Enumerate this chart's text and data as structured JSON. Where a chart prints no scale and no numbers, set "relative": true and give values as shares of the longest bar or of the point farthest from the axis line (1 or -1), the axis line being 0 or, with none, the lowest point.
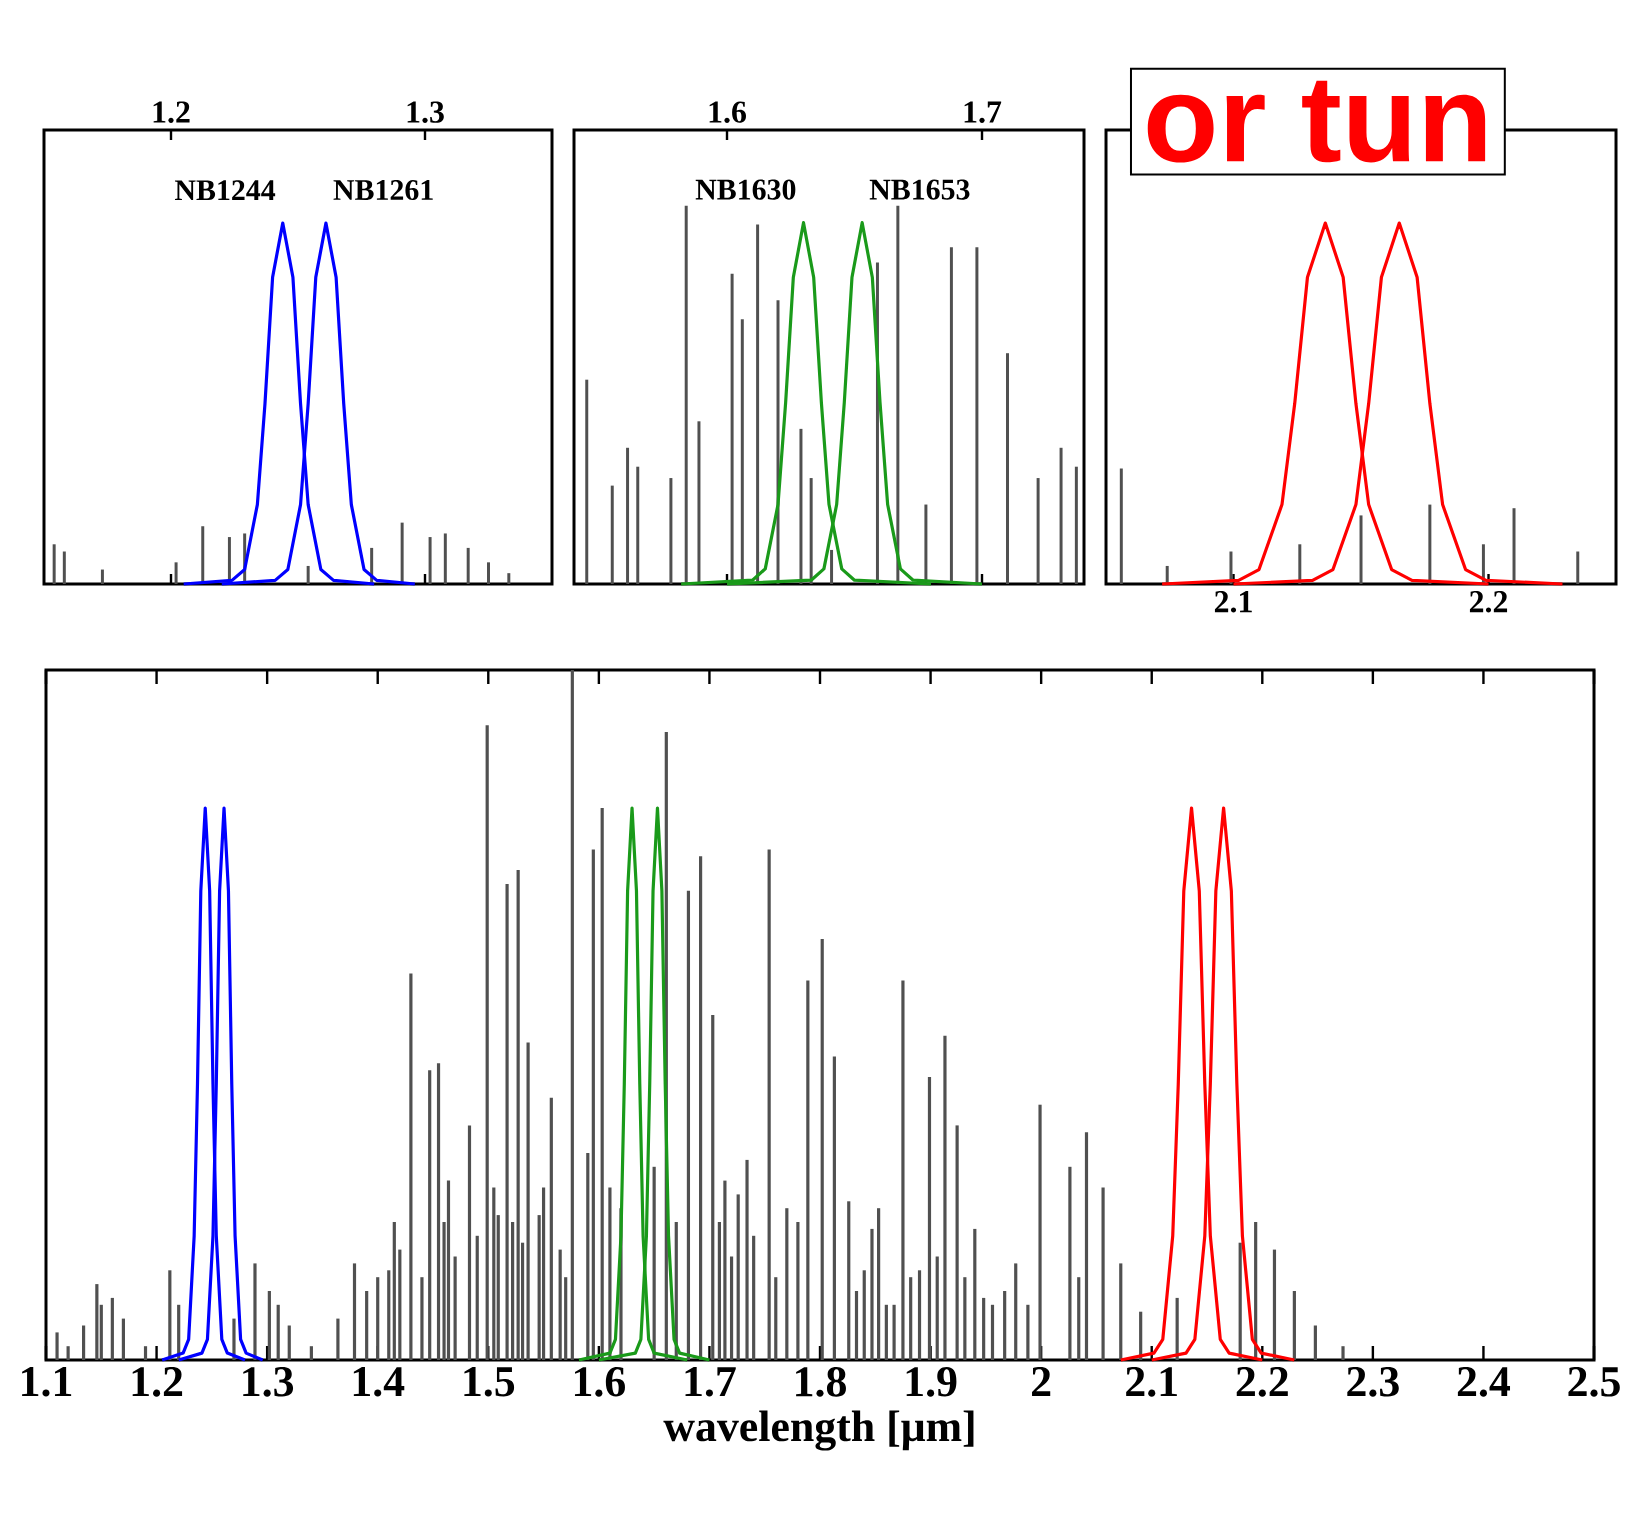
{
  "chart_data": [
    {
      "type": "bar",
      "relative": true,
      "xlim": [
        1.15,
        1.35
      ],
      "xticks": [
        1.2,
        1.3
      ],
      "tick_labels": "x",
      "series": [
        {
          "color": "#505050",
          "x": [
            1.154,
            1.158,
            1.173,
            1.202,
            1.2125,
            1.223,
            1.229,
            1.254,
            1.279,
            1.291,
            1.302,
            1.308,
            1.317,
            1.325,
            1.333
          ],
          "values": [
            0.11,
            0.09,
            0.04,
            0.06,
            0.16,
            0.13,
            0.14,
            0.05,
            0.1,
            0.17,
            0.13,
            0.14,
            0.1,
            0.06,
            0.03
          ]
        },
        {
          "type": "line",
          "name": "NB1244",
          "color": "#0000ff",
          "x": [
            1.205,
            1.224,
            1.229,
            1.234,
            1.237,
            1.24,
            1.244,
            1.248,
            1.251,
            1.254,
            1.259,
            1.264,
            1.28
          ],
          "values": [
            0,
            0.01,
            0.04,
            0.22,
            0.5,
            0.85,
            1.0,
            0.85,
            0.5,
            0.22,
            0.04,
            0.01,
            0
          ]
        },
        {
          "type": "line",
          "name": "NB1261",
          "color": "#0000ff",
          "x": [
            1.22,
            1.241,
            1.246,
            1.251,
            1.254,
            1.257,
            1.261,
            1.265,
            1.268,
            1.271,
            1.276,
            1.281,
            1.296
          ],
          "values": [
            0,
            0.01,
            0.04,
            0.22,
            0.5,
            0.85,
            1.0,
            0.85,
            0.5,
            0.22,
            0.04,
            0.01,
            0
          ]
        }
      ]
    },
    {
      "type": "bar",
      "relative": true,
      "xlim": [
        1.54,
        1.74
      ],
      "xticks": [
        1.6,
        1.7
      ],
      "tick_labels": "x",
      "series": [
        {
          "color": "#505050",
          "x": [
            1.545,
            1.555,
            1.561,
            1.565,
            1.578,
            1.584,
            1.589,
            1.602,
            1.606,
            1.612,
            1.62,
            1.629,
            1.633,
            1.641,
            1.659,
            1.667,
            1.678,
            1.688,
            1.698,
            1.71,
            1.722,
            1.731,
            1.737
          ],
          "values": [
            0.54,
            0.26,
            0.36,
            0.31,
            0.28,
            1.0,
            0.43,
            0.82,
            0.7,
            0.95,
            0.75,
            0.41,
            0.28,
            0.09,
            0.85,
            1.0,
            0.21,
            0.89,
            0.89,
            0.61,
            0.28,
            0.36,
            0.31
          ]
        },
        {
          "type": "line",
          "name": "NB1630",
          "color": "#1a9a1a",
          "x": [
            1.582,
            1.61,
            1.615,
            1.62,
            1.623,
            1.626,
            1.63,
            1.634,
            1.637,
            1.64,
            1.645,
            1.65,
            1.68
          ],
          "values": [
            0,
            0.01,
            0.04,
            0.21,
            0.48,
            0.81,
            0.955,
            0.81,
            0.48,
            0.21,
            0.04,
            0.01,
            0
          ]
        },
        {
          "type": "line",
          "name": "NB1653",
          "color": "#1a9a1a",
          "x": [
            1.6,
            1.633,
            1.638,
            1.643,
            1.646,
            1.649,
            1.653,
            1.657,
            1.66,
            1.663,
            1.668,
            1.673,
            1.7
          ],
          "values": [
            0,
            0.01,
            0.04,
            0.21,
            0.48,
            0.81,
            0.955,
            0.81,
            0.48,
            0.21,
            0.04,
            0.01,
            0
          ]
        }
      ]
    },
    {
      "type": "bar",
      "relative": true,
      "xlim": [
        2.05,
        2.25
      ],
      "xticks": [
        2.1,
        2.2
      ],
      "tick_labels": "x",
      "annotations": [
        "or tun"
      ],
      "series": [
        {
          "color": "#505050",
          "x": [
            2.056,
            2.074,
            2.099,
            2.126,
            2.15,
            2.177,
            2.198,
            2.21,
            2.235
          ],
          "values": [
            0.32,
            0.05,
            0.09,
            0.11,
            0.19,
            0.22,
            0.11,
            0.21,
            0.09
          ]
        },
        {
          "type": "line",
          "color": "#ff0000",
          "x": [
            2.072,
            2.102,
            2.11,
            2.119,
            2.124,
            2.129,
            2.136,
            2.143,
            2.148,
            2.153,
            2.162,
            2.17,
            2.2
          ],
          "values": [
            0,
            0.01,
            0.04,
            0.22,
            0.5,
            0.85,
            1.0,
            0.85,
            0.5,
            0.22,
            0.04,
            0.01,
            0
          ]
        },
        {
          "type": "line",
          "color": "#ff0000",
          "x": [
            2.1,
            2.131,
            2.139,
            2.148,
            2.153,
            2.158,
            2.165,
            2.172,
            2.177,
            2.182,
            2.191,
            2.199,
            2.229
          ],
          "values": [
            0,
            0.01,
            0.04,
            0.22,
            0.5,
            0.85,
            1.0,
            0.85,
            0.5,
            0.22,
            0.04,
            0.01,
            0
          ]
        }
      ]
    },
    {
      "type": "bar",
      "relative": true,
      "xlabel": "wavelength [μm]",
      "xlim": [
        1.1,
        2.5
      ],
      "xticks": [
        1.1,
        1.2,
        1.3,
        1.4,
        1.5,
        1.6,
        1.7,
        1.8,
        1.9,
        2,
        2.1,
        2.2,
        2.3,
        2.4,
        2.5
      ],
      "tick_labels": "x",
      "series": [
        {
          "color": "#505050",
          "x": [
            1.11,
            1.12,
            1.134,
            1.146,
            1.15,
            1.16,
            1.17,
            1.19,
            1.212,
            1.22,
            1.23,
            1.27,
            1.289,
            1.302,
            1.31,
            1.32,
            1.34,
            1.364,
            1.379,
            1.39,
            1.4,
            1.41,
            1.415,
            1.42,
            1.43,
            1.44,
            1.447,
            1.455,
            1.46,
            1.464,
            1.47,
            1.483,
            1.49,
            1.499,
            1.505,
            1.509,
            1.517,
            1.522,
            1.527,
            1.531,
            1.536,
            1.546,
            1.55,
            1.557,
            1.565,
            1.57,
            1.576,
            1.59,
            1.595,
            1.603,
            1.61,
            1.62,
            1.64,
            1.65,
            1.661,
            1.67,
            1.681,
            1.692,
            1.703,
            1.709,
            1.714,
            1.72,
            1.726,
            1.734,
            1.74,
            1.754,
            1.76,
            1.77,
            1.78,
            1.789,
            1.802,
            1.813,
            1.826,
            1.833,
            1.84,
            1.847,
            1.853,
            1.86,
            1.867,
            1.875,
            1.882,
            1.89,
            1.899,
            1.906,
            1.913,
            1.924,
            1.931,
            1.94,
            1.948,
            1.956,
            1.967,
            1.977,
            1.988,
            1.999,
            2.026,
            2.034,
            2.041,
            2.056,
            2.072,
            2.09,
            2.123,
            2.18,
            2.194,
            2.211,
            2.229,
            2.248,
            2.273
          ],
          "values": [
            0.04,
            0.02,
            0.05,
            0.11,
            0.08,
            0.09,
            0.06,
            0.02,
            0.13,
            0.08,
            null,
            0.06,
            0.14,
            0.1,
            0.08,
            0.05,
            0.02,
            0.06,
            0.14,
            0.1,
            0.12,
            0.13,
            0.2,
            0.16,
            0.56,
            0.12,
            0.42,
            0.43,
            0.2,
            0.26,
            0.15,
            0.34,
            0.18,
            0.92,
            0.25,
            0.21,
            0.69,
            0.2,
            0.71,
            0.17,
            0.46,
            0.21,
            0.25,
            0.38,
            0.16,
            0.12,
            1.0,
            0.3,
            0.74,
            0.8,
            0.25,
            0.22,
            null,
            0.28,
            0.91,
            0.2,
            0.68,
            0.73,
            0.5,
            0.2,
            0.26,
            0.15,
            0.24,
            0.29,
            0.18,
            0.74,
            0.12,
            0.22,
            0.2,
            0.55,
            0.61,
            0.44,
            0.23,
            0.1,
            0.13,
            0.19,
            0.22,
            0.08,
            0.08,
            0.55,
            0.12,
            0.13,
            0.41,
            0.15,
            0.47,
            0.34,
            0.12,
            0.19,
            0.09,
            0.08,
            0.1,
            0.14,
            0.08,
            0.37,
            0.28,
            0.12,
            0.33,
            0.25,
            0.14,
            0.07,
            0.09,
            0.17,
            0.2,
            0.16,
            0.1,
            0.05,
            0.02
          ]
        },
        {
          "type": "line",
          "color": "#0000ff",
          "x": [
            1.205,
            1.224,
            1.229,
            1.234,
            1.237,
            1.24,
            1.244,
            1.248,
            1.251,
            1.254,
            1.259,
            1.264,
            1.28
          ],
          "values": [
            0,
            0.01,
            0.03,
            0.18,
            0.4,
            0.68,
            0.8,
            0.68,
            0.4,
            0.18,
            0.03,
            0.01,
            0
          ]
        },
        {
          "type": "line",
          "color": "#0000ff",
          "x": [
            1.22,
            1.241,
            1.246,
            1.251,
            1.254,
            1.257,
            1.261,
            1.265,
            1.268,
            1.271,
            1.276,
            1.281,
            1.296
          ],
          "values": [
            0,
            0.01,
            0.03,
            0.18,
            0.4,
            0.68,
            0.8,
            0.68,
            0.4,
            0.18,
            0.03,
            0.01,
            0
          ]
        },
        {
          "type": "line",
          "color": "#1a9a1a",
          "x": [
            1.582,
            1.61,
            1.615,
            1.62,
            1.623,
            1.626,
            1.63,
            1.634,
            1.637,
            1.64,
            1.645,
            1.65,
            1.68
          ],
          "values": [
            0,
            0.01,
            0.03,
            0.18,
            0.4,
            0.68,
            0.8,
            0.68,
            0.4,
            0.18,
            0.03,
            0.01,
            0
          ]
        },
        {
          "type": "line",
          "color": "#1a9a1a",
          "x": [
            1.6,
            1.633,
            1.638,
            1.643,
            1.646,
            1.649,
            1.653,
            1.657,
            1.66,
            1.663,
            1.668,
            1.673,
            1.7
          ],
          "values": [
            0,
            0.01,
            0.03,
            0.18,
            0.4,
            0.68,
            0.8,
            0.68,
            0.4,
            0.18,
            0.03,
            0.01,
            0
          ]
        },
        {
          "type": "line",
          "color": "#ff0000",
          "x": [
            2.072,
            2.102,
            2.11,
            2.119,
            2.124,
            2.129,
            2.136,
            2.143,
            2.148,
            2.153,
            2.162,
            2.17,
            2.2
          ],
          "values": [
            0,
            0.01,
            0.03,
            0.18,
            0.4,
            0.68,
            0.8,
            0.68,
            0.4,
            0.18,
            0.03,
            0.01,
            0
          ]
        },
        {
          "type": "line",
          "color": "#ff0000",
          "x": [
            2.1,
            2.131,
            2.139,
            2.148,
            2.153,
            2.158,
            2.165,
            2.172,
            2.177,
            2.182,
            2.191,
            2.199,
            2.229
          ],
          "values": [
            0,
            0.01,
            0.03,
            0.18,
            0.4,
            0.68,
            0.8,
            0.68,
            0.4,
            0.18,
            0.03,
            0.01,
            0
          ]
        }
      ]
    }
  ]
}
